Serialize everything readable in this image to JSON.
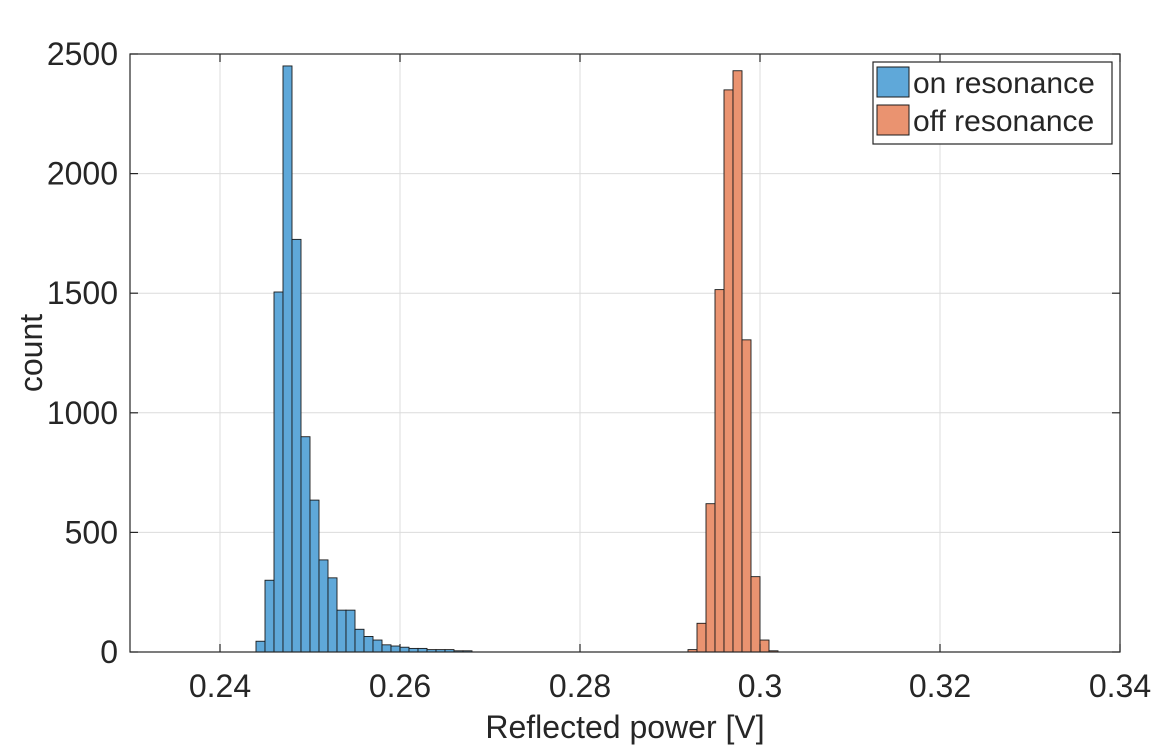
{
  "chart_data": {
    "type": "bar",
    "title": "",
    "xlabel": "Reflected power [V]",
    "ylabel": "count",
    "xlim": [
      0.23,
      0.34
    ],
    "ylim": [
      0,
      2500
    ],
    "xticks": [
      0.24,
      0.26,
      0.28,
      0.3,
      0.32,
      0.34
    ],
    "xtick_labels": [
      "0.24",
      "0.26",
      "0.28",
      "0.3",
      "0.32",
      "0.34"
    ],
    "yticks": [
      0,
      500,
      1000,
      1500,
      2000,
      2500
    ],
    "ytick_labels": [
      "0",
      "500",
      "1000",
      "1500",
      "2000",
      "2500"
    ],
    "grid": true,
    "legend_position": "top-right",
    "bin_width": 0.001,
    "series": [
      {
        "name": "on resonance",
        "color": "#5fa8d9",
        "bin_start": 0.244,
        "values": [
          45,
          300,
          1505,
          2450,
          1725,
          900,
          635,
          385,
          310,
          175,
          175,
          95,
          65,
          50,
          30,
          25,
          20,
          15,
          15,
          10,
          10,
          10,
          5,
          5
        ]
      },
      {
        "name": "off resonance",
        "color": "#ea9370",
        "bin_start": 0.292,
        "values": [
          10,
          120,
          620,
          1515,
          2350,
          2430,
          1305,
          315,
          50,
          5
        ]
      }
    ]
  }
}
